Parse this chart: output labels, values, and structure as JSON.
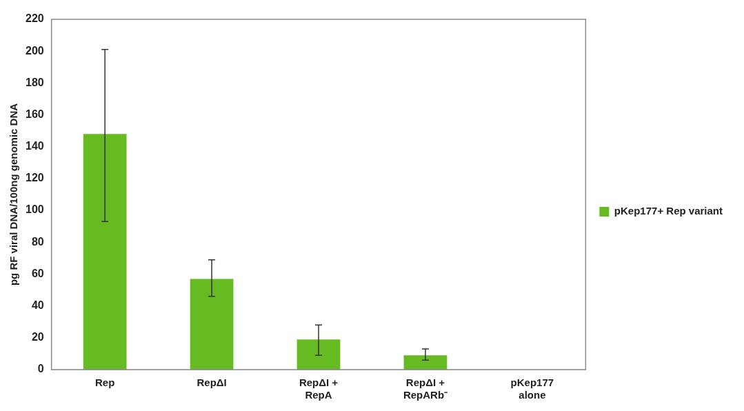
{
  "chart_data": {
    "type": "bar",
    "ylabel": "pg RF viral DNA/100ng genomic DNA",
    "categories": [
      "Rep",
      "RepΔI",
      "RepΔI + RepA",
      "RepΔI + RepARb⁻",
      "pKep177 alone"
    ],
    "series": [
      {
        "name": "pKep177+ Rep variant",
        "color": "#66bb22",
        "values": [
          148,
          57,
          19,
          9,
          0
        ],
        "errors": [
          [
            93,
            201
          ],
          [
            46,
            69
          ],
          [
            9,
            28
          ],
          [
            6,
            13
          ],
          null
        ]
      }
    ],
    "ylim": [
      0,
      220
    ],
    "yticks": [
      0,
      20,
      40,
      60,
      80,
      100,
      120,
      140,
      160,
      180,
      200,
      220
    ],
    "grid": false,
    "legend": "right"
  }
}
